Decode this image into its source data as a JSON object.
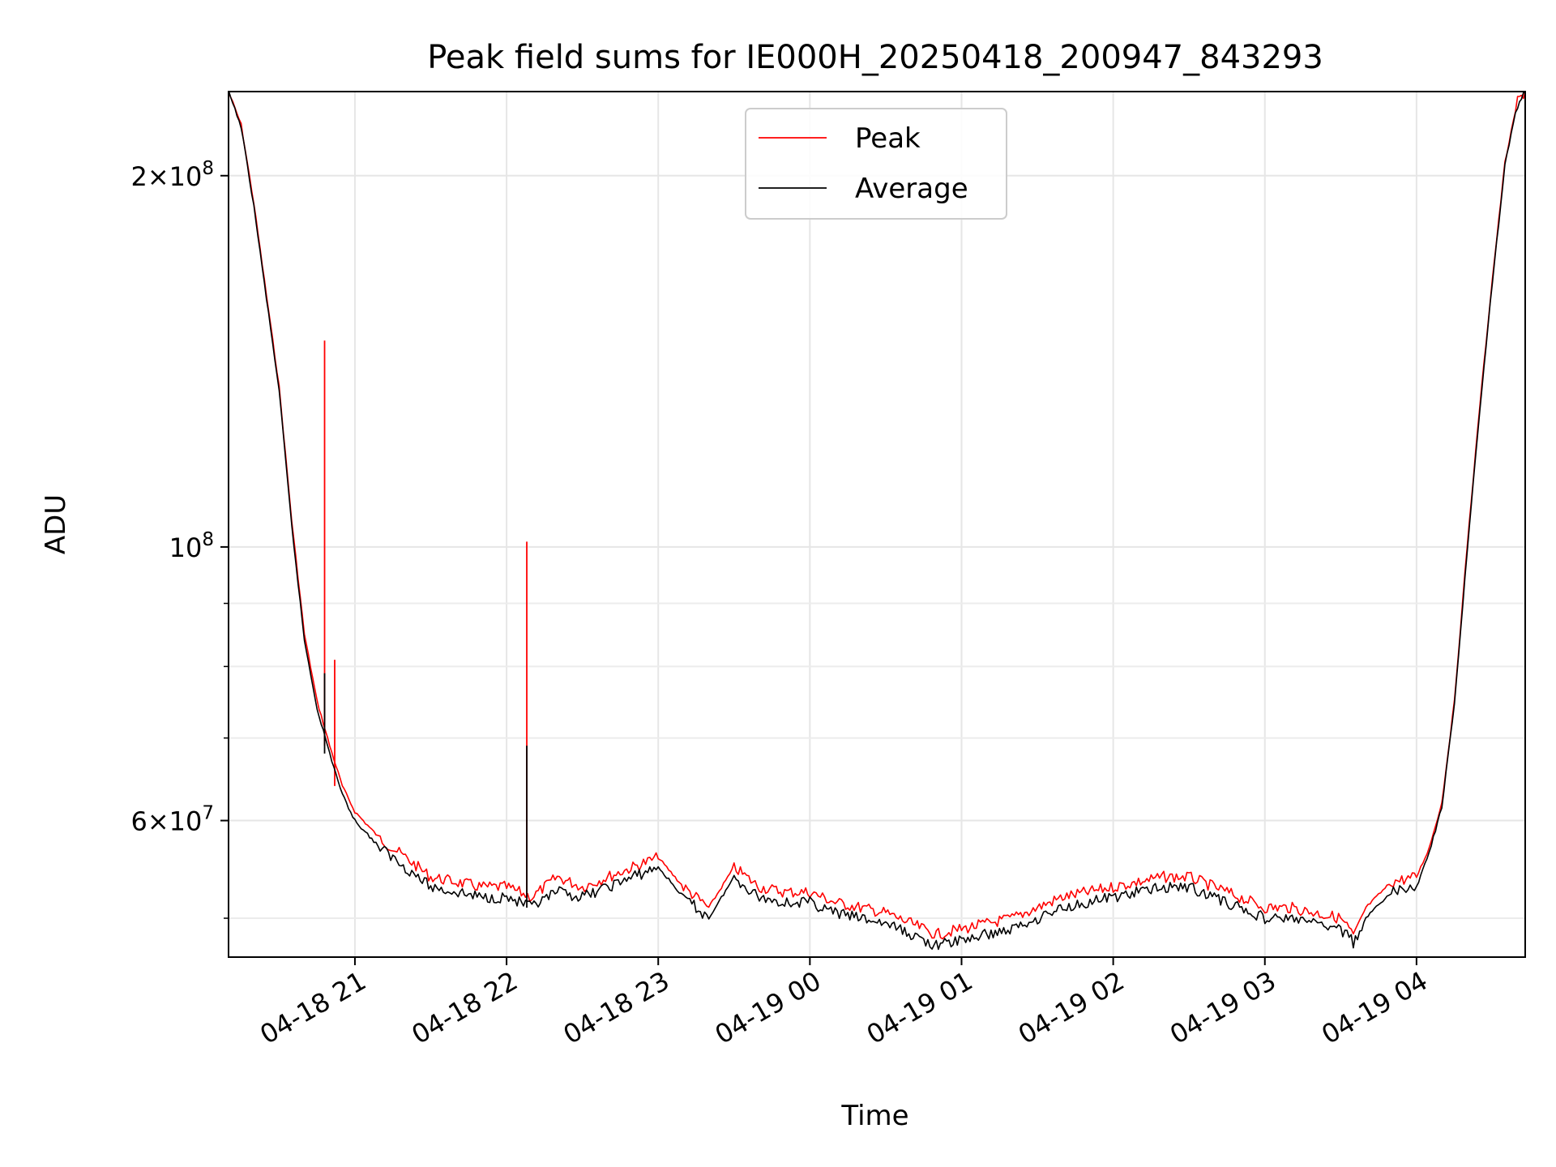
{
  "chart_data": {
    "type": "line",
    "title": "Peak field sums for IE000H_20250418_200947_843293",
    "xlabel": "Time",
    "ylabel": "ADU",
    "y_scale": "log",
    "ylim": [
      46500000,
      234000000
    ],
    "xlim": [
      "2025-04-18 20:10",
      "2025-04-19 04:43"
    ],
    "grid": true,
    "legend_position": "top-center",
    "x_ticks": [
      {
        "t": "2025-04-18 21:00",
        "label": "04-18 21"
      },
      {
        "t": "2025-04-18 22:00",
        "label": "04-18 22"
      },
      {
        "t": "2025-04-18 23:00",
        "label": "04-18 23"
      },
      {
        "t": "2025-04-19 00:00",
        "label": "04-19 00"
      },
      {
        "t": "2025-04-19 01:00",
        "label": "04-19 01"
      },
      {
        "t": "2025-04-19 02:00",
        "label": "04-19 02"
      },
      {
        "t": "2025-04-19 03:00",
        "label": "04-19 03"
      },
      {
        "t": "2025-04-19 04:00",
        "label": "04-19 04"
      }
    ],
    "y_major_ticks": [
      {
        "value": 60000000,
        "mantissa": "6",
        "base": "10",
        "exp": "7"
      },
      {
        "value": 100000000,
        "mantissa": "",
        "base": "10",
        "exp": "8"
      },
      {
        "value": 200000000,
        "mantissa": "2",
        "base": "10",
        "exp": "8"
      }
    ],
    "y_minor_ticks": [
      50000000,
      70000000,
      80000000,
      90000000
    ],
    "series": [
      {
        "name": "Peak",
        "color": "#ff0000",
        "x": [
          "2025-04-18 20:10",
          "2025-04-18 20:15",
          "2025-04-18 20:20",
          "2025-04-18 20:25",
          "2025-04-18 20:30",
          "2025-04-18 20:35",
          "2025-04-18 20:40",
          "2025-04-18 20:45",
          "2025-04-18 20:50",
          "2025-04-18 20:55",
          "2025-04-18 21:00",
          "2025-04-18 21:10",
          "2025-04-18 21:20",
          "2025-04-18 21:30",
          "2025-04-18 21:40",
          "2025-04-18 21:50",
          "2025-04-18 22:00",
          "2025-04-18 22:10",
          "2025-04-18 22:20",
          "2025-04-18 22:30",
          "2025-04-18 22:40",
          "2025-04-18 22:50",
          "2025-04-18 23:00",
          "2025-04-18 23:10",
          "2025-04-18 23:20",
          "2025-04-18 23:30",
          "2025-04-18 23:40",
          "2025-04-18 23:50",
          "2025-04-19 00:00",
          "2025-04-19 00:10",
          "2025-04-19 00:20",
          "2025-04-19 00:30",
          "2025-04-19 00:40",
          "2025-04-19 00:50",
          "2025-04-19 01:00",
          "2025-04-19 01:10",
          "2025-04-19 01:20",
          "2025-04-19 01:30",
          "2025-04-19 01:40",
          "2025-04-19 01:50",
          "2025-04-19 02:00",
          "2025-04-19 02:10",
          "2025-04-19 02:20",
          "2025-04-19 02:30",
          "2025-04-19 02:40",
          "2025-04-19 02:50",
          "2025-04-19 03:00",
          "2025-04-19 03:10",
          "2025-04-19 03:20",
          "2025-04-19 03:30",
          "2025-04-19 03:35",
          "2025-04-19 03:40",
          "2025-04-19 03:50",
          "2025-04-19 04:00",
          "2025-04-19 04:05",
          "2025-04-19 04:10",
          "2025-04-19 04:15",
          "2025-04-19 04:20",
          "2025-04-19 04:25",
          "2025-04-19 04:30",
          "2025-04-19 04:35",
          "2025-04-19 04:40",
          "2025-04-19 04:43"
        ],
        "y": [
          234000000,
          220000000,
          190000000,
          160000000,
          135000000,
          105000000,
          85000000,
          75000000,
          69000000,
          64000000,
          61000000,
          58000000,
          56000000,
          54000000,
          53500000,
          53000000,
          53000000,
          52000000,
          54000000,
          53000000,
          54000000,
          55000000,
          56000000,
          53000000,
          51000000,
          55000000,
          53000000,
          52500000,
          52500000,
          51500000,
          51000000,
          50500000,
          49500000,
          48500000,
          49000000,
          49500000,
          50000000,
          51000000,
          52000000,
          52500000,
          53000000,
          53500000,
          54000000,
          54000000,
          53000000,
          52000000,
          51000000,
          51000000,
          50500000,
          50000000,
          48500000,
          51000000,
          53500000,
          54000000,
          57000000,
          62000000,
          75000000,
          100000000,
          130000000,
          165000000,
          205000000,
          230000000,
          234000000
        ],
        "spikes": [
          {
            "x": "2025-04-18 20:48",
            "y": 147000000
          },
          {
            "x": "2025-04-18 20:52",
            "y": 81000000
          },
          {
            "x": "2025-04-18 22:08",
            "y": 101000000
          }
        ]
      },
      {
        "name": "Average",
        "color": "#000000",
        "x": [
          "2025-04-18 20:10",
          "2025-04-18 20:15",
          "2025-04-18 20:20",
          "2025-04-18 20:25",
          "2025-04-18 20:30",
          "2025-04-18 20:35",
          "2025-04-18 20:40",
          "2025-04-18 20:45",
          "2025-04-18 20:50",
          "2025-04-18 20:55",
          "2025-04-18 21:00",
          "2025-04-18 21:10",
          "2025-04-18 21:20",
          "2025-04-18 21:30",
          "2025-04-18 21:40",
          "2025-04-18 21:50",
          "2025-04-18 22:00",
          "2025-04-18 22:10",
          "2025-04-18 22:20",
          "2025-04-18 22:30",
          "2025-04-18 22:40",
          "2025-04-18 22:50",
          "2025-04-18 23:00",
          "2025-04-18 23:10",
          "2025-04-18 23:20",
          "2025-04-18 23:30",
          "2025-04-18 23:40",
          "2025-04-18 23:50",
          "2025-04-19 00:00",
          "2025-04-19 00:10",
          "2025-04-19 00:20",
          "2025-04-19 00:30",
          "2025-04-19 00:40",
          "2025-04-19 00:50",
          "2025-04-19 01:00",
          "2025-04-19 01:10",
          "2025-04-19 01:20",
          "2025-04-19 01:30",
          "2025-04-19 01:40",
          "2025-04-19 01:50",
          "2025-04-19 02:00",
          "2025-04-19 02:10",
          "2025-04-19 02:20",
          "2025-04-19 02:30",
          "2025-04-19 02:40",
          "2025-04-19 02:50",
          "2025-04-19 03:00",
          "2025-04-19 03:10",
          "2025-04-19 03:20",
          "2025-04-19 03:30",
          "2025-04-19 03:35",
          "2025-04-19 03:40",
          "2025-04-19 03:50",
          "2025-04-19 04:00",
          "2025-04-19 04:05",
          "2025-04-19 04:10",
          "2025-04-19 04:15",
          "2025-04-19 04:20",
          "2025-04-19 04:25",
          "2025-04-19 04:30",
          "2025-04-19 04:35",
          "2025-04-19 04:40",
          "2025-04-19 04:43"
        ],
        "y": [
          234000000,
          219000000,
          189000000,
          159000000,
          134000000,
          104000000,
          84000000,
          74000000,
          68000000,
          63000000,
          60000000,
          57000000,
          55000000,
          53000000,
          52500000,
          52000000,
          52000000,
          51000000,
          52500000,
          52000000,
          53000000,
          54000000,
          55000000,
          52000000,
          50000000,
          54000000,
          52000000,
          51500000,
          51500000,
          50500000,
          50000000,
          49500000,
          48500000,
          47500000,
          48000000,
          48500000,
          49000000,
          50000000,
          51000000,
          51500000,
          52000000,
          52500000,
          53000000,
          53000000,
          52000000,
          51000000,
          50000000,
          50000000,
          49500000,
          49000000,
          47800000,
          50000000,
          52500000,
          53000000,
          56500000,
          61500000,
          74500000,
          99000000,
          129000000,
          164000000,
          204000000,
          229000000,
          234000000
        ],
        "spikes": [
          {
            "x": "2025-04-18 20:48",
            "y": 79000000
          },
          {
            "x": "2025-04-18 22:08",
            "y": 69000000
          }
        ]
      }
    ]
  }
}
